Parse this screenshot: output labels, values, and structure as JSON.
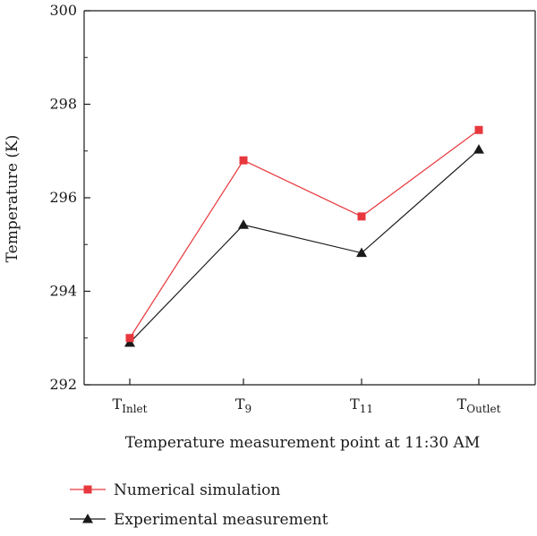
{
  "chart_data": {
    "type": "line",
    "title": "",
    "xlabel": "Temperature measurement point at 11:30 AM",
    "ylabel": "Temperature (K)",
    "ylim": [
      292,
      300
    ],
    "yticks": [
      292,
      294,
      296,
      298,
      300
    ],
    "categories": [
      {
        "base": "T",
        "sub": "Inlet"
      },
      {
        "base": "T",
        "sub": "9"
      },
      {
        "base": "T",
        "sub": "11"
      },
      {
        "base": "T",
        "sub": "Outlet"
      }
    ],
    "series": [
      {
        "name": "Numerical simulation",
        "color": "#e8383d",
        "marker": "square",
        "values": [
          293.0,
          296.8,
          295.6,
          297.45
        ]
      },
      {
        "name": "Experimental measurement",
        "color": "#1a1a1a",
        "marker": "triangle",
        "values": [
          292.9,
          295.42,
          294.82,
          297.03
        ]
      }
    ],
    "grid": false,
    "legend_position": "bottom-left"
  }
}
